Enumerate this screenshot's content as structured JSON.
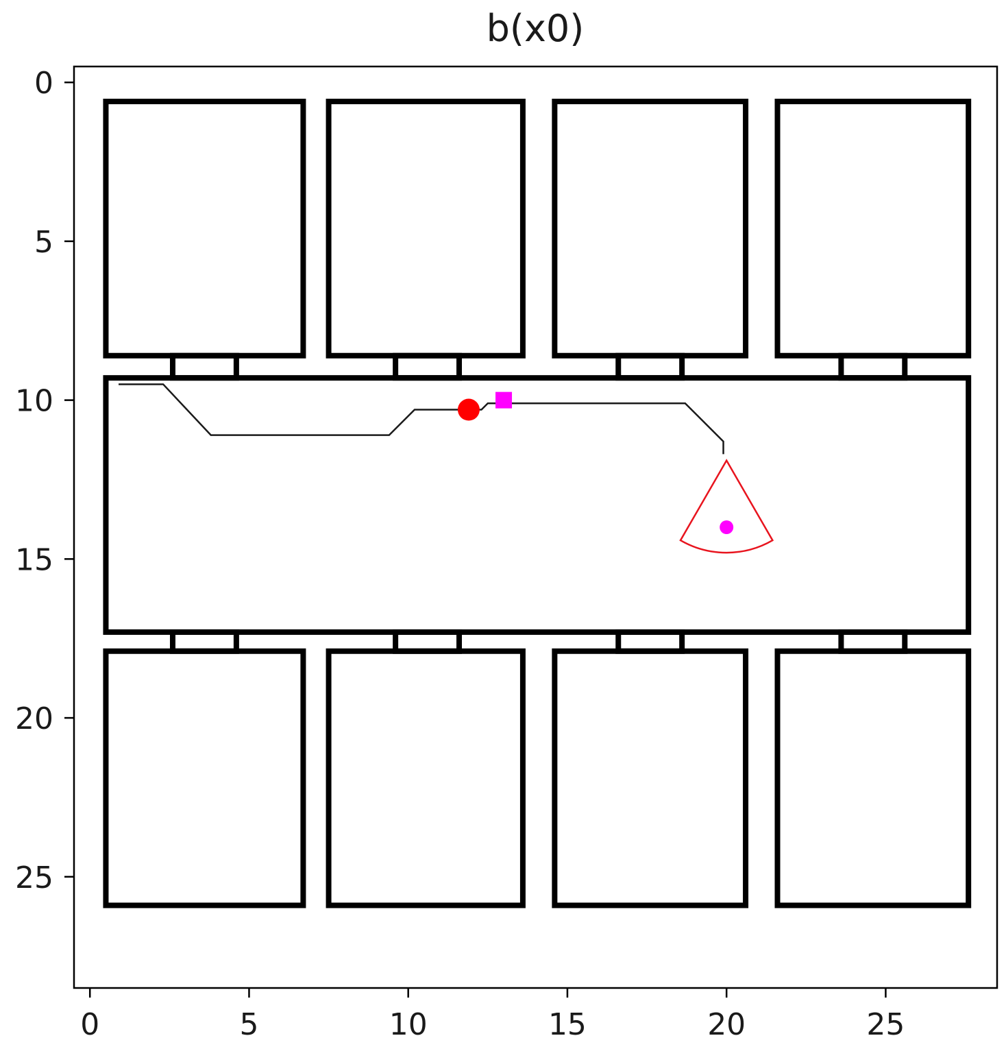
{
  "chart_data": {
    "type": "scatter",
    "title": "b(x0)",
    "xlabel": "",
    "ylabel": "",
    "xlim": [
      -0.5,
      28.5
    ],
    "ylim": [
      28.5,
      -0.5
    ],
    "y_inverted": true,
    "xticks": [
      0,
      5,
      10,
      15,
      20,
      25
    ],
    "yticks": [
      0,
      5,
      10,
      15,
      20,
      25
    ],
    "xtick_labels": [
      "0",
      "5",
      "10",
      "15",
      "20",
      "25"
    ],
    "ytick_labels": [
      "0",
      "5",
      "10",
      "15",
      "20",
      "25"
    ],
    "grid": false,
    "rooms": [
      {
        "name": "room-top-1",
        "x": [
          0.5,
          6.7
        ],
        "y": [
          0.6,
          8.6
        ]
      },
      {
        "name": "room-top-2",
        "x": [
          7.5,
          13.6
        ],
        "y": [
          0.6,
          8.6
        ]
      },
      {
        "name": "room-top-3",
        "x": [
          14.6,
          20.6
        ],
        "y": [
          0.6,
          8.6
        ]
      },
      {
        "name": "room-top-4",
        "x": [
          21.6,
          27.6
        ],
        "y": [
          0.6,
          8.6
        ]
      },
      {
        "name": "corridor",
        "x": [
          0.5,
          27.6
        ],
        "y": [
          9.3,
          17.3
        ]
      },
      {
        "name": "room-bottom-1",
        "x": [
          0.5,
          6.7
        ],
        "y": [
          17.9,
          25.9
        ]
      },
      {
        "name": "room-bottom-2",
        "x": [
          7.5,
          13.6
        ],
        "y": [
          17.9,
          25.9
        ]
      },
      {
        "name": "room-bottom-3",
        "x": [
          14.6,
          20.6
        ],
        "y": [
          17.9,
          25.9
        ]
      },
      {
        "name": "room-bottom-4",
        "x": [
          21.6,
          27.6
        ],
        "y": [
          17.9,
          25.9
        ]
      }
    ],
    "doors": [
      {
        "name": "door-top-1",
        "x": [
          2.6,
          4.6
        ],
        "y": [
          8.6,
          9.3
        ]
      },
      {
        "name": "door-top-2",
        "x": [
          9.6,
          11.6
        ],
        "y": [
          8.6,
          9.3
        ]
      },
      {
        "name": "door-top-3",
        "x": [
          16.6,
          18.6
        ],
        "y": [
          8.6,
          9.3
        ]
      },
      {
        "name": "door-top-4",
        "x": [
          23.6,
          25.6
        ],
        "y": [
          8.6,
          9.3
        ]
      },
      {
        "name": "door-bottom-1",
        "x": [
          2.6,
          4.6
        ],
        "y": [
          17.3,
          17.9
        ]
      },
      {
        "name": "door-bottom-2",
        "x": [
          9.6,
          11.6
        ],
        "y": [
          17.3,
          17.9
        ]
      },
      {
        "name": "door-bottom-3",
        "x": [
          16.6,
          18.6
        ],
        "y": [
          17.3,
          17.9
        ]
      },
      {
        "name": "door-bottom-4",
        "x": [
          23.6,
          25.6
        ],
        "y": [
          17.3,
          17.9
        ]
      }
    ],
    "trajectory": {
      "x": [
        0.9,
        2.3,
        3.8,
        9.4,
        10.2,
        12.3,
        12.5,
        18.7,
        19.9,
        19.9
      ],
      "y": [
        9.5,
        9.5,
        11.1,
        11.1,
        10.3,
        10.3,
        10.1,
        10.1,
        11.3,
        11.7
      ]
    },
    "agent": {
      "x": 11.9,
      "y": 10.3,
      "color": "#ff0000",
      "marker": "circle"
    },
    "goal": {
      "x": 13.0,
      "y": 10.0,
      "color": "#ff00ff",
      "marker": "square"
    },
    "target": {
      "x": 20.0,
      "y": 14.0,
      "color": "#ff00ff",
      "marker": "circle"
    },
    "sensor_fov": {
      "apex": [
        20.0,
        11.9
      ],
      "radius": 2.9,
      "half_angle_deg": 30,
      "direction": "down",
      "color": "#e8141e"
    },
    "colors": {
      "walls": "#000000",
      "trajectory": "#1a1a1a",
      "background": "#ffffff"
    }
  }
}
